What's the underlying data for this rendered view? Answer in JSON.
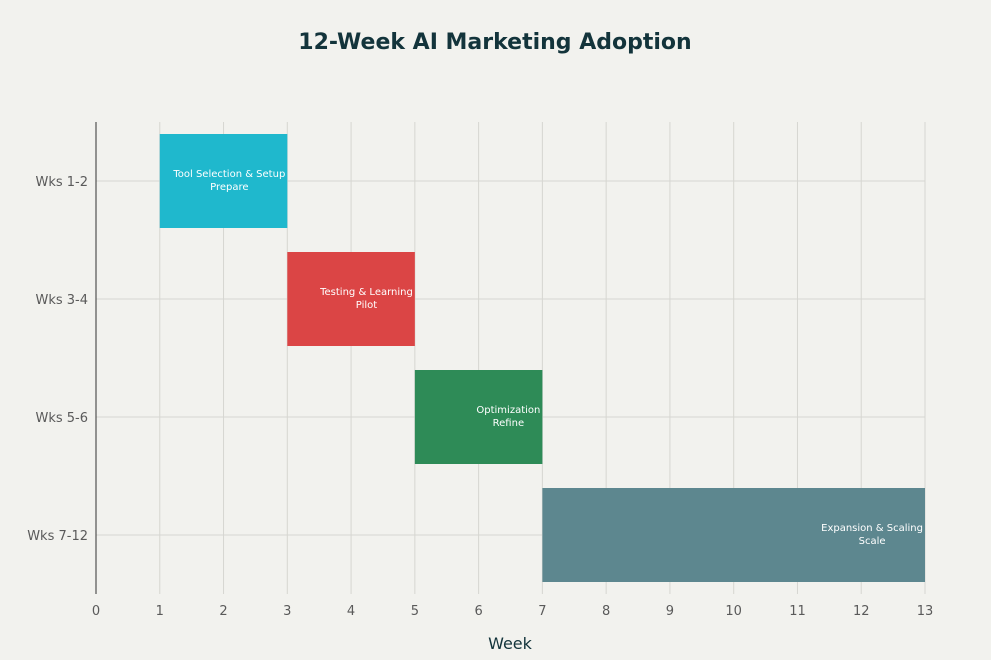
{
  "chart_data": {
    "type": "bar",
    "orientation": "horizontal",
    "title": "12-Week AI Marketing Adoption",
    "xlabel": "Week",
    "ylabel": "",
    "xlim": [
      0,
      13
    ],
    "x_ticks": [
      "0",
      "1",
      "2",
      "3",
      "4",
      "5",
      "6",
      "7",
      "8",
      "9",
      "10",
      "11",
      "12",
      "13"
    ],
    "grid": true,
    "categories": [
      "Wks 1-2",
      "Wks 3-4",
      "Wks 5-6",
      "Wks 7-12"
    ],
    "bars": [
      {
        "category": "Wks 1-2",
        "start": 1,
        "end": 3,
        "label_line1": "Tool Selection & Setup",
        "label_line2": "Prepare",
        "color": "#1fb8cd"
      },
      {
        "category": "Wks 3-4",
        "start": 3,
        "end": 5,
        "label_line1": "Testing & Learning",
        "label_line2": "Pilot",
        "color": "#db4545"
      },
      {
        "category": "Wks 5-6",
        "start": 5,
        "end": 7,
        "label_line1": "Optimization",
        "label_line2": "Refine",
        "color": "#2e8b57"
      },
      {
        "category": "Wks 7-12",
        "start": 7,
        "end": 13,
        "label_line1": "Expansion & Scaling",
        "label_line2": "Scale",
        "color": "#5d878f"
      }
    ]
  }
}
